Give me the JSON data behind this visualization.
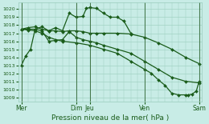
{
  "xlabel": "Pression niveau de la mer( hPa )",
  "bg_color": "#c8ece6",
  "grid_color": "#99ccbb",
  "line_color": "#1a5c1a",
  "vline_color": "#336633",
  "ylim": [
    1008.5,
    1020.8
  ],
  "yticks": [
    1009,
    1010,
    1011,
    1012,
    1013,
    1014,
    1015,
    1016,
    1017,
    1018,
    1019,
    1020
  ],
  "xlim": [
    -0.2,
    13.2
  ],
  "xticks": [
    0,
    4,
    5,
    9,
    13
  ],
  "xtick_labels": [
    "Mer",
    "Dim",
    "Jeu",
    "Ven",
    "Sam"
  ],
  "vlines": [
    0,
    4,
    5,
    9,
    13
  ],
  "lines": [
    {
      "x": [
        0,
        0.33,
        0.67,
        1,
        1.5,
        2,
        2.5,
        3,
        3.5,
        4,
        4.5,
        4.75,
        5,
        5.5,
        6,
        6.5,
        7,
        7.5,
        8
      ],
      "y": [
        1013.0,
        1014.2,
        1015.0,
        1017.5,
        1017.8,
        1017.3,
        1017.7,
        1017.3,
        1019.5,
        1019.0,
        1019.1,
        1020.1,
        1020.2,
        1020.1,
        1019.5,
        1019.0,
        1019.0,
        1018.5,
        1017.0
      ]
    },
    {
      "x": [
        0,
        0.5,
        1,
        1.5,
        2,
        2.5,
        3,
        3.5,
        4,
        4.5,
        5,
        5.5,
        6,
        7,
        8,
        9,
        10,
        11,
        12,
        13
      ],
      "y": [
        1017.5,
        1017.7,
        1017.8,
        1017.5,
        1017.3,
        1017.3,
        1017.2,
        1017.3,
        1017.3,
        1017.2,
        1017.0,
        1017.0,
        1017.0,
        1017.0,
        1016.9,
        1016.5,
        1015.8,
        1015.0,
        1014.0,
        1013.2
      ]
    },
    {
      "x": [
        0,
        0.5,
        1,
        1.5,
        2,
        2.5,
        3,
        3.5,
        4,
        4.5,
        5,
        5.5,
        6,
        7,
        8,
        9,
        10,
        11,
        12,
        13
      ],
      "y": [
        1017.5,
        1017.5,
        1017.5,
        1017.3,
        1016.0,
        1016.1,
        1016.2,
        1017.2,
        1016.5,
        1016.2,
        1016.0,
        1015.8,
        1015.5,
        1015.0,
        1014.5,
        1013.5,
        1012.5,
        1011.5,
        1011.0,
        1010.8
      ]
    },
    {
      "x": [
        0,
        0.5,
        1,
        1.5,
        2,
        2.5,
        3,
        4,
        5,
        6,
        7,
        8,
        9,
        9.5,
        10,
        10.5,
        11,
        11.5,
        12,
        12.2,
        12.5,
        12.8,
        13
      ],
      "y": [
        1017.5,
        1017.4,
        1017.3,
        1017.0,
        1016.5,
        1016.2,
        1016.0,
        1015.8,
        1015.5,
        1015.0,
        1014.5,
        1013.5,
        1012.5,
        1012.0,
        1011.2,
        1010.5,
        1009.5,
        1009.3,
        1009.3,
        1009.3,
        1009.4,
        1009.8,
        1011.0
      ]
    }
  ],
  "linewidth": 0.9,
  "markersize": 2.0,
  "marker": "D"
}
